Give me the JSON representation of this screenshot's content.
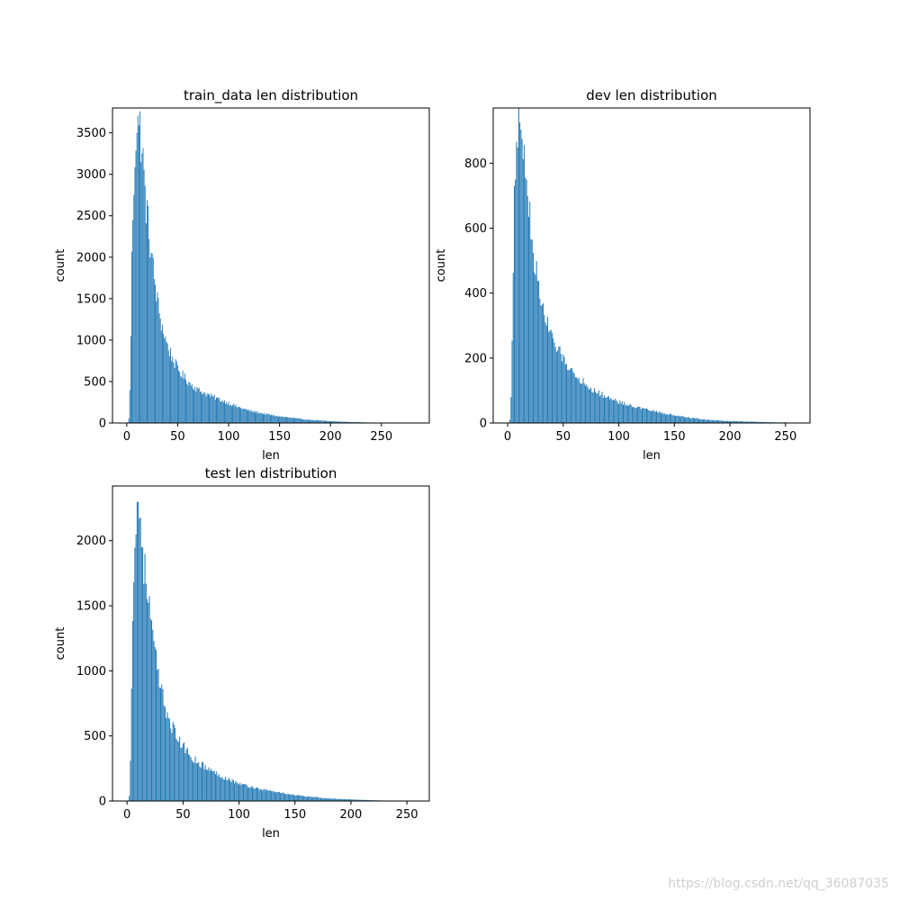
{
  "chart_data": [
    {
      "type": "bar",
      "title": "train_data len distribution",
      "xlabel": "len",
      "ylabel": "count",
      "xlim": [
        -14,
        297
      ],
      "ylim": [
        0,
        3800
      ],
      "xticks": [
        0,
        50,
        100,
        150,
        200,
        250
      ],
      "yticks": [
        0,
        500,
        1000,
        1500,
        2000,
        2500,
        3000,
        3500
      ],
      "color": "#1f77b4",
      "bin_width": 0.8,
      "x_range": [
        1,
        285
      ],
      "peak": {
        "x": 12,
        "y": 3590
      },
      "profile": [
        [
          1,
          0
        ],
        [
          2,
          60
        ],
        [
          3,
          380
        ],
        [
          4,
          1080
        ],
        [
          5,
          1950
        ],
        [
          6,
          2550
        ],
        [
          7,
          2900
        ],
        [
          8,
          3300
        ],
        [
          9,
          3450
        ],
        [
          10,
          3520
        ],
        [
          11,
          3570
        ],
        [
          12,
          3590
        ],
        [
          13,
          3550
        ],
        [
          14,
          3450
        ],
        [
          15,
          3300
        ],
        [
          16,
          3150
        ],
        [
          17,
          2950
        ],
        [
          18,
          2750
        ],
        [
          20,
          2520
        ],
        [
          22,
          2300
        ],
        [
          25,
          1950
        ],
        [
          28,
          1650
        ],
        [
          31,
          1400
        ],
        [
          35,
          1150
        ],
        [
          40,
          930
        ],
        [
          45,
          780
        ],
        [
          50,
          650
        ],
        [
          60,
          500
        ],
        [
          70,
          400
        ],
        [
          80,
          340
        ],
        [
          90,
          290
        ],
        [
          100,
          240
        ],
        [
          110,
          190
        ],
        [
          120,
          150
        ],
        [
          130,
          125
        ],
        [
          140,
          100
        ],
        [
          150,
          80
        ],
        [
          160,
          65
        ],
        [
          170,
          50
        ],
        [
          180,
          38
        ],
        [
          190,
          30
        ],
        [
          200,
          22
        ],
        [
          210,
          17
        ],
        [
          220,
          12
        ],
        [
          230,
          9
        ],
        [
          240,
          6
        ],
        [
          250,
          4
        ],
        [
          260,
          2
        ],
        [
          270,
          1
        ],
        [
          285,
          0
        ]
      ]
    },
    {
      "type": "bar",
      "title": "dev len distribution",
      "xlabel": "len",
      "ylabel": "count",
      "xlim": [
        -13,
        272
      ],
      "ylim": [
        0,
        970
      ],
      "xticks": [
        0,
        50,
        100,
        150,
        200,
        250
      ],
      "yticks": [
        0,
        200,
        400,
        600,
        800
      ],
      "color": "#1f77b4",
      "bin_width": 0.8,
      "x_range": [
        1,
        260
      ],
      "peak": {
        "x": 11,
        "y": 925
      },
      "profile": [
        [
          1,
          0
        ],
        [
          2,
          10
        ],
        [
          3,
          80
        ],
        [
          4,
          270
        ],
        [
          5,
          500
        ],
        [
          6,
          680
        ],
        [
          7,
          760
        ],
        [
          8,
          830
        ],
        [
          9,
          860
        ],
        [
          10,
          900
        ],
        [
          11,
          925
        ],
        [
          12,
          880
        ],
        [
          13,
          870
        ],
        [
          14,
          850
        ],
        [
          15,
          820
        ],
        [
          16,
          780
        ],
        [
          18,
          700
        ],
        [
          20,
          640
        ],
        [
          22,
          560
        ],
        [
          25,
          480
        ],
        [
          28,
          420
        ],
        [
          31,
          370
        ],
        [
          35,
          310
        ],
        [
          40,
          260
        ],
        [
          45,
          225
        ],
        [
          50,
          200
        ],
        [
          60,
          150
        ],
        [
          70,
          120
        ],
        [
          80,
          95
        ],
        [
          90,
          80
        ],
        [
          100,
          65
        ],
        [
          110,
          55
        ],
        [
          120,
          45
        ],
        [
          130,
          38
        ],
        [
          140,
          30
        ],
        [
          150,
          24
        ],
        [
          160,
          18
        ],
        [
          170,
          14
        ],
        [
          180,
          10
        ],
        [
          190,
          8
        ],
        [
          200,
          6
        ],
        [
          210,
          5
        ],
        [
          220,
          4
        ],
        [
          230,
          3
        ],
        [
          240,
          2
        ],
        [
          250,
          2
        ],
        [
          260,
          0
        ]
      ]
    },
    {
      "type": "bar",
      "title": "test len distribution",
      "xlabel": "len",
      "ylabel": "count",
      "xlim": [
        -13,
        270
      ],
      "ylim": [
        0,
        2420
      ],
      "xticks": [
        0,
        50,
        100,
        150,
        200,
        250
      ],
      "yticks": [
        0,
        500,
        1000,
        1500,
        2000
      ],
      "color": "#1f77b4",
      "bin_width": 0.8,
      "x_range": [
        1,
        255
      ],
      "peak": {
        "x": 10,
        "y": 2300
      },
      "profile": [
        [
          1,
          0
        ],
        [
          2,
          40
        ],
        [
          3,
          330
        ],
        [
          4,
          950
        ],
        [
          5,
          1400
        ],
        [
          6,
          1700
        ],
        [
          7,
          1900
        ],
        [
          8,
          2150
        ],
        [
          9,
          2250
        ],
        [
          10,
          2300
        ],
        [
          11,
          2250
        ],
        [
          12,
          2150
        ],
        [
          13,
          2050
        ],
        [
          14,
          1950
        ],
        [
          15,
          1850
        ],
        [
          16,
          1750
        ],
        [
          18,
          1620
        ],
        [
          20,
          1480
        ],
        [
          22,
          1320
        ],
        [
          25,
          1120
        ],
        [
          28,
          950
        ],
        [
          31,
          820
        ],
        [
          35,
          700
        ],
        [
          40,
          580
        ],
        [
          45,
          480
        ],
        [
          50,
          420
        ],
        [
          60,
          320
        ],
        [
          70,
          260
        ],
        [
          80,
          210
        ],
        [
          90,
          170
        ],
        [
          100,
          135
        ],
        [
          110,
          110
        ],
        [
          120,
          90
        ],
        [
          130,
          75
        ],
        [
          140,
          60
        ],
        [
          150,
          45
        ],
        [
          160,
          35
        ],
        [
          170,
          28
        ],
        [
          180,
          20
        ],
        [
          190,
          15
        ],
        [
          200,
          12
        ],
        [
          210,
          9
        ],
        [
          220,
          6
        ],
        [
          230,
          4
        ],
        [
          240,
          3
        ],
        [
          250,
          2
        ],
        [
          255,
          0
        ]
      ]
    }
  ],
  "watermark": "https://blog.csdn.net/qq_36087035"
}
